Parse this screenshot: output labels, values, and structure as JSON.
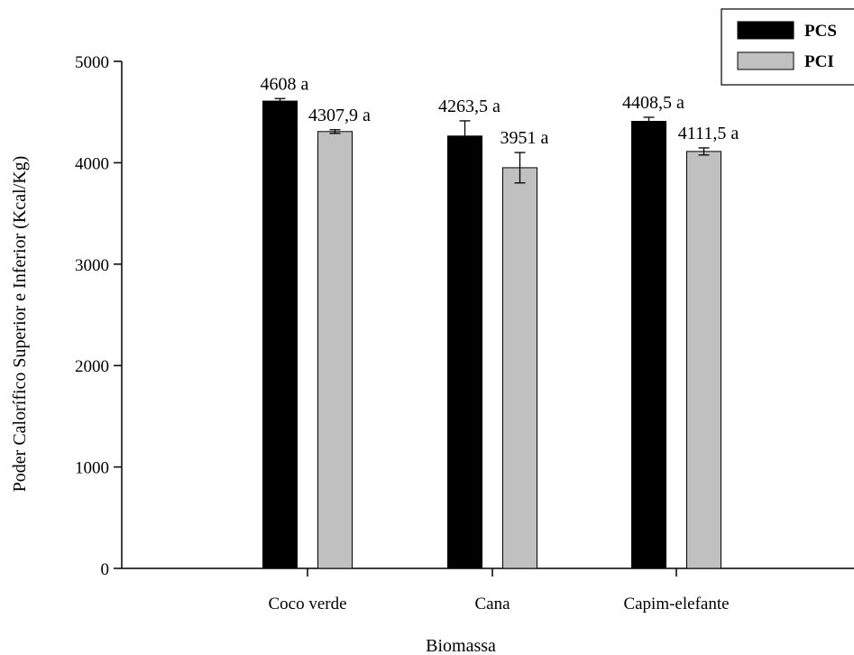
{
  "chart_data": {
    "type": "bar",
    "xlabel": "Biomassa",
    "ylabel": "Poder Calorífico Superior e Inferior (Kcal/Kg)",
    "ylim": [
      0,
      5000
    ],
    "yticks": [
      0,
      1000,
      2000,
      3000,
      4000,
      5000
    ],
    "categories": [
      "Coco verde",
      "Cana",
      "Capim-elefante"
    ],
    "series": [
      {
        "name": "PCS",
        "color": "#000000",
        "values": [
          4608,
          4263.5,
          4408.5
        ],
        "errors": [
          25,
          150,
          40
        ],
        "labels": [
          "4608 a",
          "4263,5 a",
          "4408,5 a"
        ]
      },
      {
        "name": "PCI",
        "color": "#c0c0c0",
        "values": [
          4307.9,
          3951,
          4111.5
        ],
        "errors": [
          18,
          150,
          35
        ],
        "labels": [
          "4307,9 a",
          "3951 a",
          "4111,5 a"
        ]
      }
    ],
    "legend_position": "top-right",
    "grid": false
  }
}
